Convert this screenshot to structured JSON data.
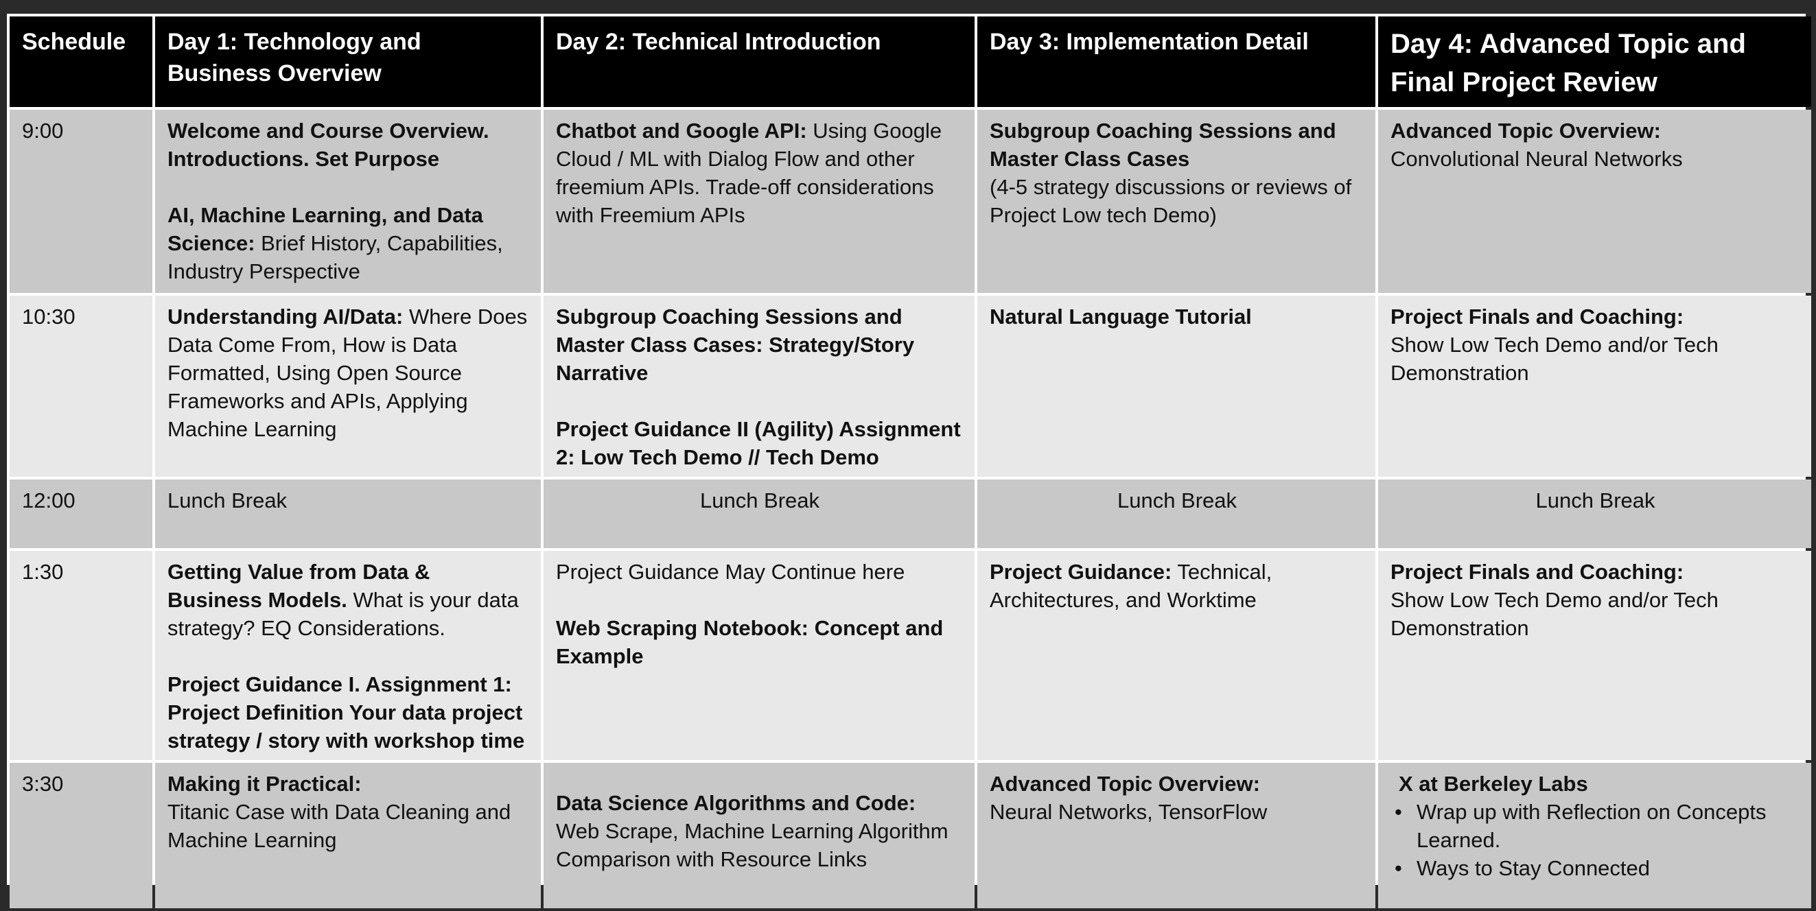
{
  "headers": [
    "Schedule",
    "Day 1: Technology and Business Overview",
    "Day 2: Technical Introduction",
    "Day 3: Implementation Detail",
    "Day 4: Advanced Topic and Final Project Review"
  ],
  "rows": {
    "r900": {
      "time": "9:00",
      "d1": {
        "title1": "Welcome and Course Overview. Introductions.  Set Purpose",
        "title2": "AI, Machine Learning, and Data Science:",
        "text2": " Brief History, Capabilities, Industry Perspective"
      },
      "d2": {
        "title": "Chatbot and Google API:",
        "text": " Using Google Cloud / ML with Dialog Flow and other freemium APIs. Trade-off considerations with Freemium APIs"
      },
      "d3": {
        "title": "Subgroup Coaching Sessions and Master Class Cases",
        "text": "(4-5 strategy discussions or reviews of Project Low tech Demo)"
      },
      "d4": {
        "title": "Advanced Topic Overview:",
        "text": "Convolutional Neural Networks"
      }
    },
    "r1030": {
      "time": "10:30",
      "d1": {
        "title": "Understanding AI/Data:",
        "text": " Where Does Data Come From, How is Data Formatted, Using Open Source Frameworks  and APIs, Applying Machine Learning"
      },
      "d2": {
        "title1": "Subgroup Coaching Sessions and Master Class Cases: Strategy/Story Narrative",
        "title2": "Project Guidance II (Agility) Assignment 2: Low Tech Demo // Tech Demo"
      },
      "d3": {
        "title": "Natural Language Tutorial"
      },
      "d4": {
        "title": "Project Finals and Coaching:",
        "text": "Show Low Tech Demo and/or Tech Demonstration"
      }
    },
    "r1200": {
      "time": "12:00",
      "d1": "Lunch Break",
      "d2": "Lunch Break",
      "d3": "Lunch Break",
      "d4": "Lunch Break"
    },
    "r130": {
      "time": "1:30",
      "d1": {
        "title1": "Getting Value from Data & Business Models.",
        "text1": "  What is your data strategy? EQ Considerations.",
        "title2": "Project Guidance I.  Assignment 1: Project Definition Your data project strategy / story with workshop time"
      },
      "d2": {
        "text1": "Project Guidance May Continue here",
        "title2": "Web Scraping Notebook: Concept and Example"
      },
      "d3": {
        "title": "Project Guidance:",
        "text": " Technical, Architectures, and Worktime"
      },
      "d4": {
        "title": "Project Finals and Coaching:",
        "text": "Show Low Tech Demo and/or Tech Demonstration"
      }
    },
    "r330": {
      "time": "3:30",
      "d1": {
        "title": "Making it Practical:",
        "text": "Titanic Case with Data Cleaning and Machine Learning"
      },
      "d2": {
        "title": "Data Science Algorithms and Code:",
        "text": "Web Scrape, Machine Learning Algorithm Comparison with Resource Links"
      },
      "d3": {
        "title": "Advanced Topic Overview:",
        "text": "Neural Networks, TensorFlow"
      },
      "d4": {
        "title": "X at Berkeley Labs",
        "bullets": [
          "Wrap up with Reflection on Concepts Learned.",
          "Ways to Stay Connected"
        ]
      }
    }
  }
}
